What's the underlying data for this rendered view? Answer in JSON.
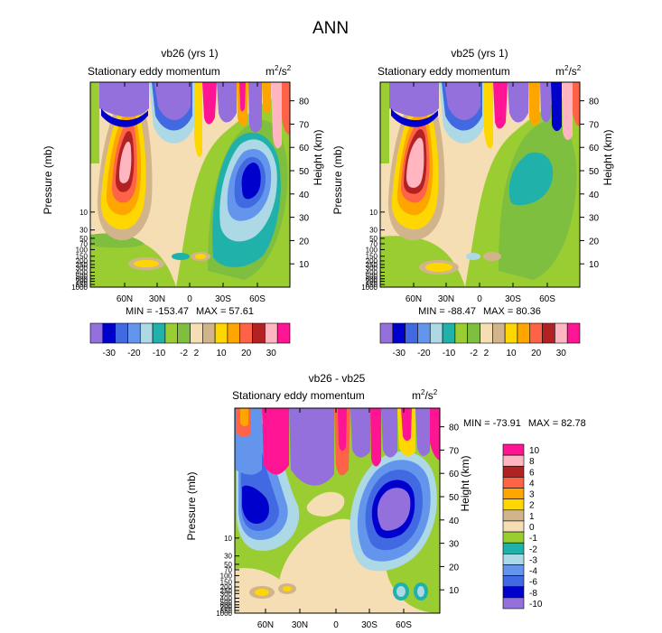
{
  "figure_title": "ANN",
  "units_base": "m",
  "units_exp1": "2",
  "units_mid": "/s",
  "units_exp2": "2",
  "chart_data": [
    {
      "type": "heatmap",
      "id": "p1",
      "title": "vb26 (yrs 1)",
      "subtitle": "Stationary eddy momentum",
      "ylabel_left": "Pressure (mb)",
      "ylabel_right": "Height (km)",
      "x_ticks": [
        "60N",
        "30N",
        "0",
        "30S",
        "60S"
      ],
      "p_ticks": [
        "10",
        "30",
        "50",
        "70",
        "100",
        "150",
        "200",
        "250",
        "300",
        "400",
        "500",
        "600",
        "700",
        "850",
        "1000"
      ],
      "km_ticks": [
        "10",
        "20",
        "30",
        "40",
        "50",
        "60",
        "70",
        "80"
      ],
      "min_label": "MIN = -153.47",
      "max_label": "MAX =  57.61",
      "levels": [
        "-30",
        "-20",
        "-10",
        "-2",
        "2",
        "10",
        "20",
        "30"
      ],
      "ylim_km": [
        0,
        88
      ]
    },
    {
      "type": "heatmap",
      "id": "p2",
      "title": "vb25 (yrs 1)",
      "subtitle": "Stationary eddy momentum",
      "ylabel_left": "Pressure (mb)",
      "ylabel_right": "Height (km)",
      "x_ticks": [
        "60N",
        "30N",
        "0",
        "30S",
        "60S"
      ],
      "p_ticks": [
        "10",
        "30",
        "50",
        "70",
        "100",
        "150",
        "200",
        "250",
        "300",
        "400",
        "500",
        "600",
        "700",
        "850",
        "1000"
      ],
      "km_ticks": [
        "10",
        "20",
        "30",
        "40",
        "50",
        "60",
        "70",
        "80"
      ],
      "min_label": "MIN = -88.47",
      "max_label": "MAX =  80.36",
      "levels": [
        "-30",
        "-20",
        "-10",
        "-2",
        "2",
        "10",
        "20",
        "30"
      ],
      "ylim_km": [
        0,
        88
      ]
    },
    {
      "type": "heatmap",
      "id": "p3",
      "title": "vb26 - vb25",
      "subtitle": "Stationary eddy momentum",
      "ylabel_left": "Pressure (mb)",
      "ylabel_right": "Height (km)",
      "x_ticks": [
        "60N",
        "30N",
        "0",
        "30S",
        "60S"
      ],
      "p_ticks": [
        "10",
        "30",
        "50",
        "70",
        "100",
        "150",
        "200",
        "250",
        "300",
        "400",
        "500",
        "600",
        "700",
        "850",
        "1000"
      ],
      "km_ticks": [
        "10",
        "20",
        "30",
        "40",
        "50",
        "60",
        "70",
        "80"
      ],
      "min_label": "MIN = -73.91",
      "max_label": "MAX =  82.78",
      "levels": [
        "10",
        "8",
        "6",
        "4",
        "3",
        "2",
        "1",
        "0",
        "-1",
        "-2",
        "-3",
        "-4",
        "-6",
        "-8",
        "-10"
      ],
      "ylim_km": [
        0,
        88
      ]
    }
  ],
  "palette": {
    "abs": [
      "#9370DB",
      "#0000CD",
      "#4169E1",
      "#6495ED",
      "#ADD8E6",
      "#20B2AA",
      "#9ACD32",
      "#7FBF3F",
      "#F5DEB3",
      "#D2B48C",
      "#FFD700",
      "#FFA500",
      "#FF6347",
      "#B22222",
      "#FFB6C1",
      "#FF1493"
    ],
    "diff": [
      "#FF1493",
      "#FFB6C1",
      "#B22222",
      "#FF6347",
      "#FFA500",
      "#FFD700",
      "#D2B48C",
      "#F5DEB3",
      "#9ACD32",
      "#20B2AA",
      "#ADD8E6",
      "#6495ED",
      "#4169E1",
      "#0000CD",
      "#9370DB"
    ]
  }
}
